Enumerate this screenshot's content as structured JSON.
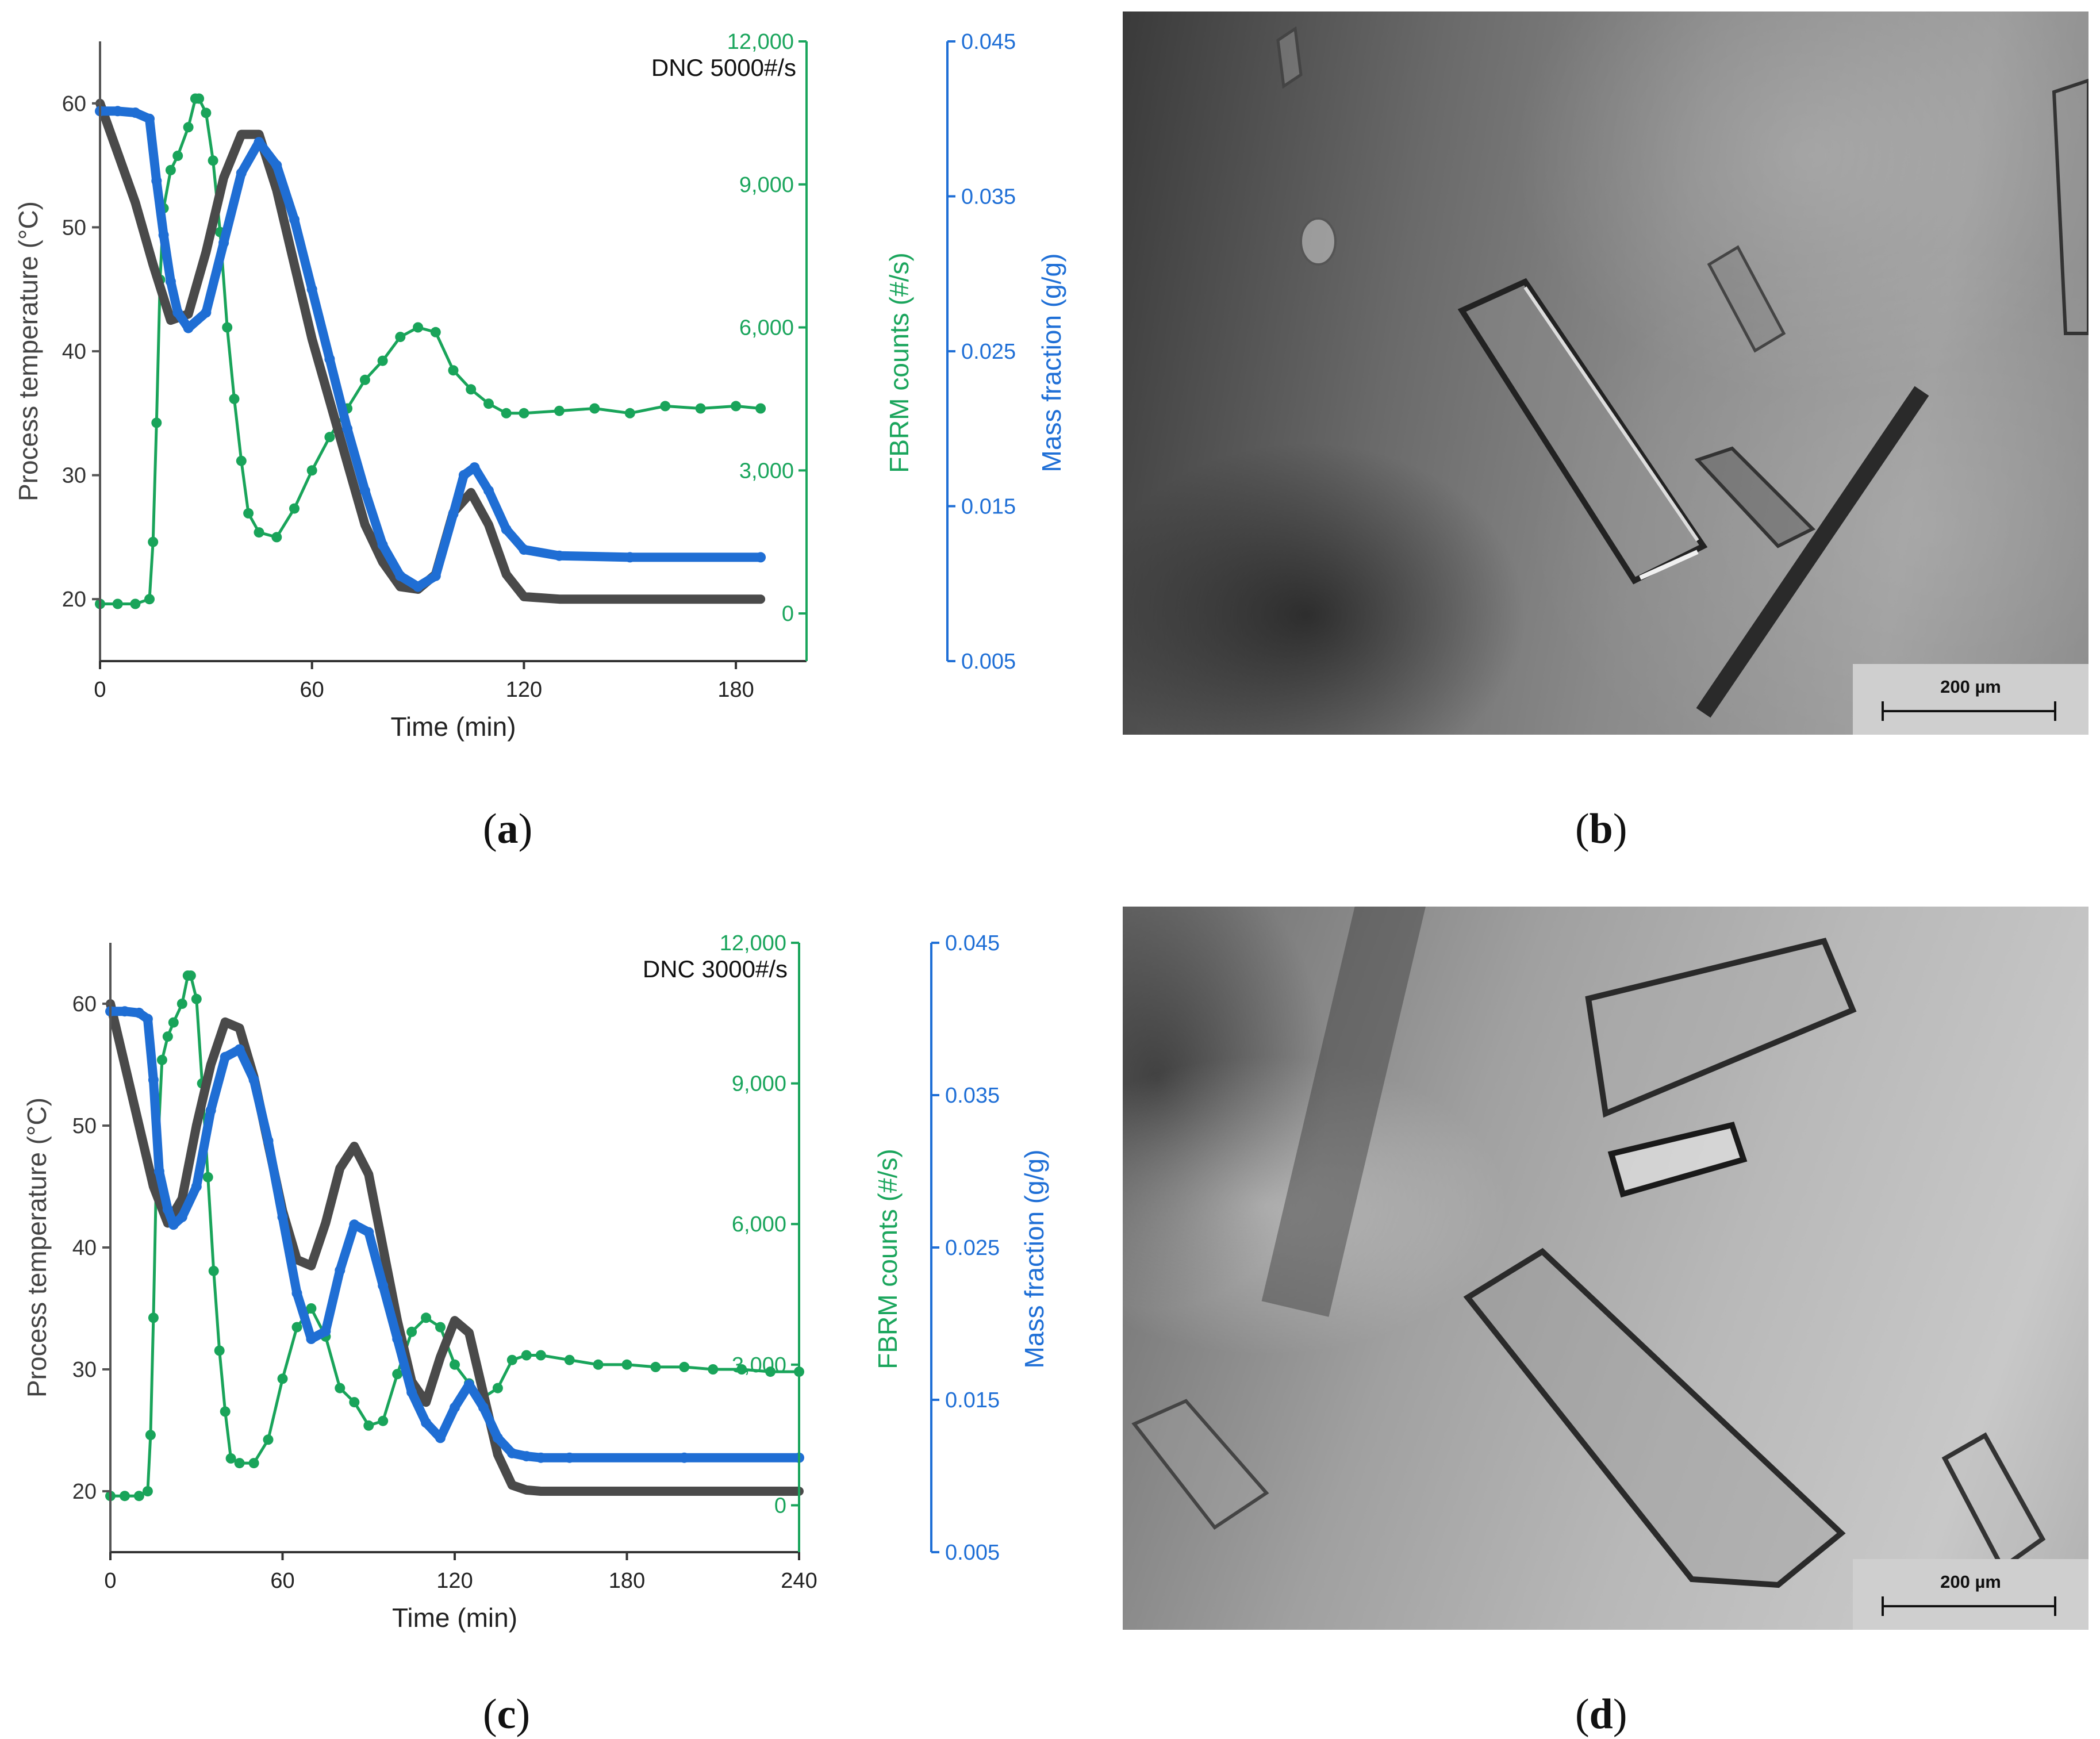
{
  "figure": {
    "panels": [
      {
        "id": "a",
        "label_open": "(",
        "label_letter": "a",
        "label_close": ")"
      },
      {
        "id": "b",
        "label_open": "(",
        "label_letter": "b",
        "label_close": ")",
        "scale_text": "200 µm"
      },
      {
        "id": "c",
        "label_open": "(",
        "label_letter": "c",
        "label_close": ")"
      },
      {
        "id": "d",
        "label_open": "(",
        "label_letter": "d",
        "label_close": ")",
        "scale_text": "200 µm"
      }
    ]
  },
  "colors": {
    "temperature": "#4a4a4a",
    "fbrm": "#19a45a",
    "mass": "#1f6ed4",
    "axis_left": "#555555",
    "axis_fbrm": "#1aa55c",
    "axis_mass": "#1f6fd6"
  },
  "chart_data": [
    {
      "type": "line",
      "panel": "a",
      "annotation": "DNC 5000#/s",
      "xlabel": "Time (min)",
      "y1label": "Process temperature (°C)",
      "y2label": "FBRM counts (#/s)",
      "y3label": "Mass fraction (g/g)",
      "xlim": [
        0,
        200
      ],
      "y1lim": [
        15,
        65
      ],
      "y2lim": [
        -1000,
        12000
      ],
      "y3lim": [
        0.005,
        0.045
      ],
      "xticks": [
        0,
        60,
        120,
        180
      ],
      "y1ticks": [
        20,
        30,
        40,
        50,
        60
      ],
      "y2ticks": [
        0,
        3000,
        6000,
        9000,
        12000
      ],
      "y2ticklabels": [
        "0",
        "3,000",
        "6,000",
        "9,000",
        "12,000"
      ],
      "y3ticks": [
        0.005,
        0.015,
        0.025,
        0.035,
        0.045
      ],
      "y3ticklabels": [
        "0.005",
        "0.015",
        "0.025",
        "0.035",
        "0.045"
      ],
      "series": [
        {
          "key": "temperature",
          "axis": "y1",
          "x": [
            0,
            5,
            10,
            15,
            20,
            25,
            30,
            35,
            40,
            45,
            50,
            55,
            60,
            65,
            70,
            75,
            80,
            85,
            90,
            95,
            100,
            105,
            110,
            115,
            120,
            130,
            150,
            187
          ],
          "y": [
            60,
            56,
            52,
            47,
            42.5,
            43,
            48,
            54,
            57.5,
            57.5,
            53,
            47,
            41,
            36,
            31,
            26,
            23,
            21,
            20.8,
            22,
            27,
            28.6,
            26,
            22,
            20.2,
            20,
            20,
            20
          ]
        },
        {
          "key": "fbrm",
          "axis": "y2",
          "x": [
            0,
            5,
            10,
            14,
            15,
            16,
            17,
            18,
            20,
            22,
            25,
            27,
            28,
            30,
            32,
            34,
            36,
            38,
            40,
            42,
            45,
            50,
            55,
            60,
            65,
            70,
            75,
            80,
            85,
            90,
            95,
            100,
            105,
            110,
            115,
            120,
            130,
            140,
            150,
            160,
            170,
            180,
            187
          ],
          "y": [
            200,
            200,
            200,
            300,
            1500,
            4000,
            7000,
            8500,
            9300,
            9600,
            10200,
            10800,
            10800,
            10500,
            9500,
            8000,
            6000,
            4500,
            3200,
            2100,
            1700,
            1600,
            2200,
            3000,
            3700,
            4300,
            4900,
            5300,
            5800,
            6000,
            5900,
            5100,
            4700,
            4400,
            4200,
            4200,
            4250,
            4300,
            4200,
            4350,
            4300,
            4350,
            4300
          ]
        },
        {
          "key": "mass",
          "axis": "y3",
          "x": [
            0,
            5,
            10,
            14,
            16,
            18,
            20,
            22,
            25,
            30,
            35,
            40,
            45,
            50,
            55,
            60,
            65,
            70,
            75,
            80,
            85,
            90,
            95,
            100,
            103,
            106,
            110,
            115,
            120,
            130,
            150,
            187
          ],
          "y": [
            0.0405,
            0.0405,
            0.0404,
            0.04,
            0.036,
            0.0325,
            0.0295,
            0.0275,
            0.0265,
            0.0275,
            0.032,
            0.0365,
            0.0385,
            0.037,
            0.0335,
            0.029,
            0.0245,
            0.02,
            0.016,
            0.0125,
            0.0105,
            0.0098,
            0.0105,
            0.0145,
            0.017,
            0.0175,
            0.016,
            0.0135,
            0.0122,
            0.0118,
            0.0117,
            0.0117
          ]
        }
      ]
    },
    {
      "type": "line",
      "panel": "c",
      "annotation": "DNC 3000#/s",
      "xlabel": "Time (min)",
      "y1label": "Process temperature (°C)",
      "y2label": "FBRM counts (#/s)",
      "y3label": "Mass fraction (g/g)",
      "xlim": [
        0,
        240
      ],
      "y1lim": [
        15,
        65
      ],
      "y2lim": [
        -1000,
        12000
      ],
      "y3lim": [
        0.005,
        0.045
      ],
      "xticks": [
        0,
        60,
        120,
        180,
        240
      ],
      "y1ticks": [
        20,
        30,
        40,
        50,
        60
      ],
      "y2ticks": [
        0,
        3000,
        6000,
        9000,
        12000
      ],
      "y2ticklabels": [
        "0",
        "3,000",
        "6,000",
        "9,000",
        "12,000"
      ],
      "y3ticks": [
        0.005,
        0.015,
        0.025,
        0.035,
        0.045
      ],
      "y3ticklabels": [
        "0.005",
        "0.015",
        "0.025",
        "0.035",
        "0.045"
      ],
      "series": [
        {
          "key": "temperature",
          "axis": "y1",
          "x": [
            0,
            5,
            10,
            15,
            20,
            25,
            30,
            35,
            40,
            45,
            50,
            55,
            60,
            65,
            70,
            75,
            80,
            85,
            90,
            95,
            100,
            105,
            110,
            115,
            120,
            125,
            130,
            135,
            140,
            145,
            150,
            160,
            200,
            240
          ],
          "y": [
            60,
            55,
            50,
            45,
            42,
            44,
            50,
            55,
            58.5,
            58,
            54,
            48.5,
            43,
            39,
            38.5,
            42,
            46.5,
            48.3,
            46,
            40,
            34,
            29,
            27.3,
            31,
            34,
            33,
            28,
            23,
            20.5,
            20.1,
            20,
            20,
            20,
            20
          ]
        },
        {
          "key": "fbrm",
          "axis": "y2",
          "x": [
            0,
            5,
            10,
            13,
            14,
            15,
            16,
            18,
            20,
            22,
            25,
            27,
            28,
            30,
            32,
            34,
            36,
            38,
            40,
            42,
            45,
            50,
            55,
            60,
            65,
            70,
            75,
            80,
            85,
            90,
            95,
            100,
            105,
            110,
            115,
            120,
            125,
            130,
            135,
            140,
            145,
            150,
            160,
            170,
            180,
            190,
            200,
            210,
            220,
            230,
            240
          ],
          "y": [
            200,
            200,
            200,
            300,
            1500,
            4000,
            7000,
            9500,
            10000,
            10300,
            10700,
            11300,
            11300,
            10800,
            9000,
            7000,
            5000,
            3300,
            2000,
            1000,
            900,
            900,
            1400,
            2700,
            3800,
            4200,
            3600,
            2500,
            2200,
            1700,
            1800,
            2800,
            3700,
            4000,
            3800,
            3000,
            2600,
            2300,
            2500,
            3100,
            3200,
            3200,
            3100,
            3000,
            3000,
            2950,
            2950,
            2900,
            2900,
            2850,
            2850
          ]
        },
        {
          "key": "mass",
          "axis": "y3",
          "x": [
            0,
            5,
            10,
            13,
            15,
            17,
            20,
            22,
            25,
            30,
            35,
            40,
            45,
            50,
            55,
            60,
            65,
            70,
            75,
            80,
            85,
            90,
            95,
            100,
            105,
            110,
            115,
            120,
            125,
            130,
            135,
            140,
            145,
            150,
            160,
            200,
            240
          ],
          "y": [
            0.0405,
            0.0405,
            0.0404,
            0.04,
            0.036,
            0.03,
            0.0275,
            0.0265,
            0.027,
            0.029,
            0.034,
            0.0375,
            0.038,
            0.036,
            0.032,
            0.027,
            0.022,
            0.019,
            0.0195,
            0.0235,
            0.0265,
            0.026,
            0.0225,
            0.019,
            0.0155,
            0.0135,
            0.0125,
            0.0145,
            0.016,
            0.0145,
            0.0125,
            0.0115,
            0.0113,
            0.0112,
            0.0112,
            0.0112,
            0.0112
          ]
        }
      ]
    }
  ]
}
